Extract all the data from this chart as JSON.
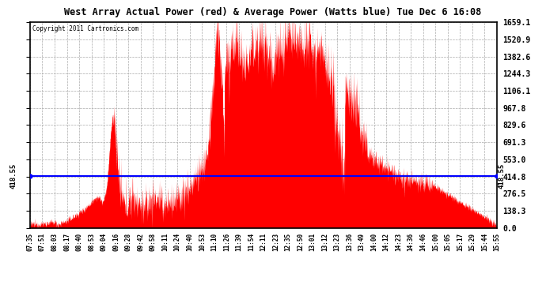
{
  "title": "West Array Actual Power (red) & Average Power (Watts blue) Tue Dec 6 16:08",
  "copyright": "Copyright 2011 Cartronics.com",
  "average_power": 418.55,
  "y_max": 1659.1,
  "y_ticks": [
    0.0,
    138.3,
    276.5,
    414.8,
    553.0,
    691.3,
    829.6,
    967.8,
    1106.1,
    1244.3,
    1382.6,
    1520.9,
    1659.1
  ],
  "bg_color": "#ffffff",
  "plot_bg_color": "#ffffff",
  "fill_color": "#ff0000",
  "line_color": "#0000ff",
  "grid_color": "#aaaaaa",
  "x_labels": [
    "07:35",
    "07:51",
    "08:03",
    "08:17",
    "08:40",
    "08:53",
    "09:04",
    "09:16",
    "09:28",
    "09:42",
    "09:58",
    "10:11",
    "10:24",
    "10:40",
    "10:53",
    "11:10",
    "11:26",
    "11:39",
    "11:54",
    "12:11",
    "12:23",
    "12:35",
    "12:50",
    "13:01",
    "13:12",
    "13:23",
    "13:36",
    "13:49",
    "14:00",
    "14:12",
    "14:23",
    "14:36",
    "14:46",
    "15:00",
    "15:05",
    "15:17",
    "15:29",
    "15:44",
    "15:55"
  ]
}
